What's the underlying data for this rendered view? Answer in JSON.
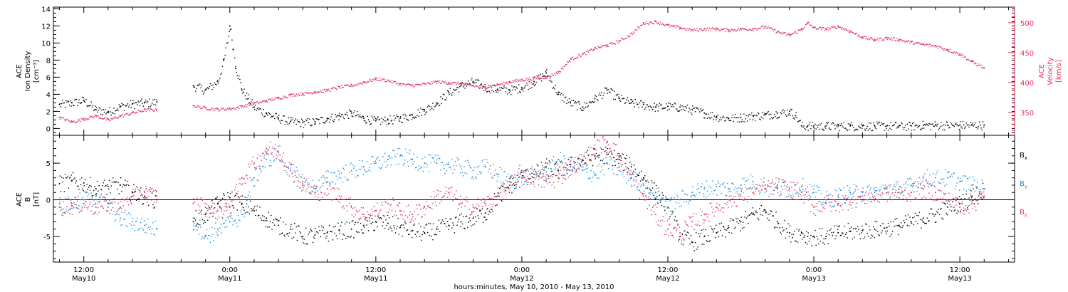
{
  "chart_data": {
    "type": "scatter",
    "xlabel": "hours:minutes, May 10, 2010 - May 13, 2010",
    "x_unit": "hours since 2010-05-10 00:00",
    "xlim": [
      9.5,
      88.5
    ],
    "x_ticks": [
      {
        "x": 12,
        "top": "12:00",
        "bottom": "May10"
      },
      {
        "x": 24,
        "top": "0:00",
        "bottom": "May11"
      },
      {
        "x": 36,
        "top": "12:00",
        "bottom": "May11"
      },
      {
        "x": 48,
        "top": "0:00",
        "bottom": "May12"
      },
      {
        "x": 60,
        "top": "12:00",
        "bottom": "May12"
      },
      {
        "x": 72,
        "top": "0:00",
        "bottom": "May13"
      },
      {
        "x": 84,
        "top": "12:00",
        "bottom": "May13"
      }
    ],
    "panels": [
      {
        "ylabel_left": [
          "ACE",
          "Ion Density",
          "[cm⁻³]"
        ],
        "ylim_left": [
          -0.8,
          14.2
        ],
        "yticks_left": [
          0,
          2,
          4,
          6,
          8,
          10,
          12,
          14
        ],
        "ylabel_right": [
          "ACE",
          "Velocity",
          "[km/s]"
        ],
        "ylim_right": [
          312,
          526
        ],
        "yticks_right": [
          350,
          400,
          450,
          500
        ],
        "series": [
          {
            "color": "#000000",
            "axis": "left",
            "x": [
              10,
              11,
              12,
              13,
              14,
              15,
              16,
              17,
              18,
              21,
              22,
              23,
              23.5,
              24,
              24.5,
              25,
              25.5,
              26,
              27,
              28,
              29,
              30,
              31,
              32,
              33,
              34,
              35,
              36,
              37,
              38,
              39,
              40,
              41,
              42,
              43,
              44,
              45,
              46,
              47,
              48,
              49,
              50,
              51,
              52,
              53,
              54,
              55,
              56,
              57,
              58,
              59,
              60,
              61,
              62,
              63,
              64,
              65,
              66,
              67,
              68,
              69,
              70,
              70.5,
              71,
              71.5,
              72,
              73,
              74,
              75,
              76,
              77,
              78,
              79,
              80,
              81,
              82,
              83,
              84,
              85,
              86
            ],
            "y": [
              2.8,
              3.0,
              3.3,
              2.2,
              2.0,
              2.6,
              2.9,
              3.0,
              3.1,
              5.0,
              4.5,
              5.5,
              8.0,
              12.0,
              7.0,
              4.5,
              3.5,
              2.5,
              1.8,
              1.2,
              0.8,
              0.7,
              0.8,
              1.2,
              1.5,
              1.8,
              1.2,
              0.9,
              1.0,
              1.2,
              1.6,
              2.2,
              3.0,
              4.2,
              5.0,
              5.5,
              4.8,
              4.6,
              4.5,
              4.8,
              5.5,
              6.5,
              4.0,
              3.0,
              2.5,
              3.5,
              4.5,
              3.5,
              3.0,
              2.8,
              2.5,
              2.6,
              2.5,
              2.2,
              1.8,
              1.4,
              1.2,
              1.3,
              1.5,
              1.6,
              1.8,
              2.0,
              1.5,
              0.3,
              0.3,
              0.3,
              0.3,
              0.3,
              0.3,
              0.3,
              0.3,
              0.3,
              0.3,
              0.3,
              0.4,
              0.4,
              0.4,
              0.4,
              0.4,
              0.4
            ]
          },
          {
            "color": "#e0305a",
            "axis": "right",
            "x": [
              10,
              11,
              12,
              13,
              14,
              15,
              16,
              17,
              18,
              21,
              22,
              23,
              24,
              25,
              26,
              27,
              28,
              29,
              30,
              31,
              32,
              33,
              34,
              35,
              36,
              37,
              38,
              39,
              40,
              41,
              42,
              43,
              44,
              45,
              46,
              47,
              48,
              49,
              50,
              51,
              52,
              53,
              54,
              55,
              56,
              57,
              58,
              59,
              60,
              61,
              62,
              63,
              64,
              65,
              66,
              67,
              68,
              69,
              70,
              71,
              71.5,
              72,
              73,
              74,
              75,
              76,
              77,
              78,
              79,
              80,
              81,
              82,
              83,
              84,
              85,
              86
            ],
            "y": [
              342,
              335,
              340,
              345,
              338,
              345,
              350,
              355,
              355,
              362,
              358,
              356,
              357,
              361,
              366,
              370,
              375,
              380,
              382,
              385,
              388,
              393,
              396,
              401,
              407,
              404,
              398,
              396,
              398,
              402,
              400,
              399,
              395,
              393,
              397,
              402,
              405,
              408,
              410,
              418,
              440,
              448,
              458,
              463,
              470,
              482,
              500,
              502,
              496,
              492,
              488,
              490,
              490,
              488,
              490,
              490,
              494,
              485,
              480,
              490,
              500,
              492,
              490,
              494,
              486,
              476,
              472,
              475,
              472,
              468,
              464,
              462,
              455,
              448,
              435,
              425
            ]
          }
        ]
      },
      {
        "ylabel_left": [
          "ACE",
          "B",
          "[nT]"
        ],
        "ylim_left": [
          -8.5,
          8.8
        ],
        "yticks_left": [
          -5,
          0,
          5
        ],
        "legend_position": "right",
        "series": [
          {
            "name": "Bx",
            "color": "#000000",
            "x": [
              10,
              11,
              12,
              13,
              14,
              15,
              16,
              17,
              18,
              21,
              22,
              23,
              24,
              25,
              26,
              27,
              28,
              29,
              30,
              31,
              32,
              33,
              34,
              35,
              36,
              37,
              38,
              39,
              40,
              41,
              42,
              43,
              44,
              45,
              46,
              47,
              48,
              49,
              50,
              51,
              52,
              53,
              54,
              55,
              56,
              57,
              58,
              59,
              60,
              61,
              62,
              63,
              64,
              65,
              66,
              67,
              68,
              69,
              70,
              71,
              71.5,
              72,
              73,
              74,
              75,
              76,
              77,
              78,
              79,
              80,
              81,
              82,
              83,
              84,
              85,
              86
            ],
            "y": [
              2.2,
              2.6,
              2.3,
              1.5,
              1.8,
              2.0,
              1.0,
              0.5,
              0.0,
              -3.0,
              -2.0,
              -0.5,
              0.3,
              -0.5,
              -1.5,
              -2.5,
              -3.5,
              -4.0,
              -5.0,
              -4.8,
              -4.5,
              -4.2,
              -4.0,
              -3.5,
              -3.0,
              -3.2,
              -3.8,
              -4.2,
              -4.5,
              -4.0,
              -3.5,
              -3.0,
              -2.5,
              -1.8,
              0.5,
              2.0,
              3.0,
              3.5,
              4.5,
              4.0,
              4.8,
              5.5,
              6.0,
              6.2,
              5.5,
              4.5,
              3.0,
              1.0,
              -1.0,
              -5.0,
              -5.8,
              -5.0,
              -4.5,
              -3.8,
              -3.0,
              -2.0,
              -1.5,
              -3.0,
              -4.5,
              -4.5,
              -5.0,
              -5.0,
              -5.0,
              -4.5,
              -4.3,
              -4.2,
              -4.0,
              -3.8,
              -3.5,
              -3.0,
              -2.5,
              -2.0,
              -1.0,
              -0.5,
              0.5,
              1.5
            ]
          },
          {
            "name": "By",
            "color": "#1d8de0",
            "x": [
              10,
              11,
              12,
              13,
              14,
              15,
              16,
              17,
              18,
              21,
              22,
              23,
              24,
              25,
              26,
              27,
              28,
              29,
              30,
              31,
              32,
              33,
              34,
              35,
              36,
              37,
              38,
              39,
              40,
              41,
              42,
              43,
              44,
              45,
              46,
              47,
              48,
              49,
              50,
              51,
              52,
              53,
              54,
              55,
              56,
              57,
              58,
              59,
              60,
              61,
              62,
              63,
              64,
              65,
              66,
              67,
              68,
              69,
              70,
              71,
              72,
              73,
              74,
              75,
              76,
              77,
              78,
              79,
              80,
              81,
              82,
              83,
              84,
              85,
              86
            ],
            "y": [
              -1.0,
              -0.5,
              0.0,
              0.5,
              -1.0,
              -2.5,
              -3.0,
              -3.5,
              -4.0,
              -2.5,
              -5.0,
              -4.0,
              -3.0,
              -2.0,
              3.0,
              5.5,
              6.5,
              4.0,
              2.5,
              1.5,
              3.0,
              3.5,
              4.0,
              4.5,
              5.0,
              5.5,
              6.0,
              5.5,
              5.0,
              5.0,
              4.8,
              4.5,
              4.0,
              4.5,
              3.5,
              2.5,
              3.0,
              3.5,
              3.8,
              5.5,
              4.5,
              4.0,
              3.5,
              5.0,
              4.0,
              3.0,
              2.0,
              1.0,
              -1.0,
              0.0,
              1.0,
              1.5,
              1.8,
              1.5,
              2.0,
              2.5,
              2.0,
              1.5,
              1.5,
              1.8,
              1.0,
              0.0,
              0.5,
              1.0,
              1.0,
              1.0,
              1.5,
              1.5,
              2.0,
              3.0,
              3.0,
              3.0,
              2.5,
              2.0,
              1.5
            ]
          },
          {
            "name": "Bz",
            "color": "#e0305a",
            "x": [
              10,
              11,
              12,
              13,
              14,
              15,
              16,
              17,
              18,
              21,
              22,
              23,
              24,
              25,
              26,
              27,
              28,
              29,
              30,
              31,
              32,
              33,
              34,
              35,
              36,
              37,
              38,
              39,
              40,
              41,
              42,
              43,
              44,
              45,
              46,
              47,
              48,
              49,
              50,
              51,
              52,
              53,
              54,
              55,
              56,
              57,
              58,
              59,
              60,
              61,
              62,
              63,
              64,
              65,
              66,
              67,
              68,
              69,
              70,
              71,
              72,
              73,
              74,
              75,
              76,
              77,
              78,
              79,
              80,
              81,
              82,
              83,
              84,
              85,
              86
            ],
            "y": [
              -0.5,
              -0.8,
              -0.5,
              -1.0,
              -0.5,
              -1.0,
              0.5,
              1.0,
              0.5,
              -0.5,
              -1.0,
              -1.5,
              -1.0,
              3.0,
              5.0,
              7.0,
              6.5,
              4.0,
              2.0,
              1.0,
              1.5,
              0.5,
              -1.0,
              -2.0,
              -1.5,
              -0.5,
              -1.5,
              -2.0,
              -1.0,
              0.5,
              1.0,
              -0.5,
              -1.0,
              -0.5,
              0.5,
              2.0,
              4.0,
              3.0,
              2.5,
              3.0,
              4.5,
              5.5,
              7.0,
              8.0,
              6.0,
              3.0,
              0.5,
              -2.0,
              -4.0,
              -4.5,
              -3.0,
              -2.0,
              -1.0,
              0.0,
              0.5,
              1.0,
              1.5,
              2.0,
              1.5,
              1.0,
              -1.0,
              -0.5,
              -0.5,
              0.0,
              0.5,
              0.5,
              1.0,
              1.0,
              1.0,
              1.5,
              1.0,
              0.0,
              -1.0,
              -0.5,
              0.5
            ]
          }
        ]
      }
    ]
  }
}
